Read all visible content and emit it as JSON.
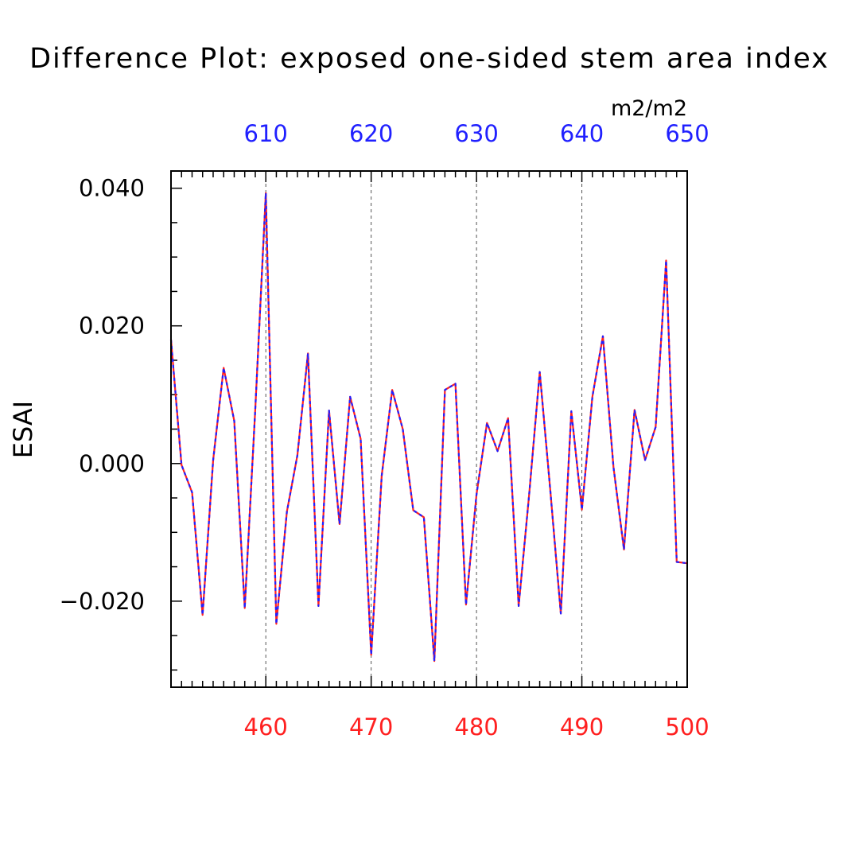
{
  "chart_data": {
    "type": "line",
    "title": "Difference Plot: exposed one-sided stem area index",
    "units": "m2/m2",
    "ylabel": "ESAI",
    "xlim_bottom": [
      451,
      500
    ],
    "xlim_top": [
      601,
      650
    ],
    "ylim": [
      -0.0325,
      0.0425
    ],
    "grid": "dashed vertical lines at major x ticks",
    "bottom_ticks": [
      "460",
      "470",
      "480",
      "490",
      "500"
    ],
    "top_ticks": [
      "610",
      "620",
      "630",
      "640",
      "650"
    ],
    "y_ticks": [
      "0.040",
      "0.020",
      "0.000",
      "−0.020"
    ],
    "colors": {
      "bottom_axis": "#ff2020",
      "top_axis": "#2020ff",
      "line_a": "#ff2020",
      "line_b": "#2020ff"
    },
    "x": [
      451,
      452,
      453,
      454,
      455,
      456,
      457,
      458,
      459,
      460,
      461,
      462,
      463,
      464,
      465,
      466,
      467,
      468,
      469,
      470,
      471,
      472,
      473,
      474,
      475,
      476,
      477,
      478,
      479,
      480,
      481,
      482,
      483,
      484,
      485,
      486,
      487,
      488,
      489,
      490,
      491,
      492,
      493,
      494,
      495,
      496,
      497,
      498,
      499,
      500
    ],
    "values": [
      0.018,
      -0.0002,
      -0.0042,
      -0.022,
      0.0005,
      0.0139,
      0.0062,
      -0.021,
      0.008,
      0.0393,
      -0.0233,
      -0.007,
      0.0012,
      0.016,
      -0.0207,
      0.0077,
      -0.0088,
      0.0097,
      0.0036,
      -0.0278,
      -0.0018,
      0.0107,
      0.005,
      -0.0068,
      -0.0078,
      -0.0287,
      0.0107,
      0.0116,
      -0.0205,
      -0.0045,
      0.0059,
      0.0018,
      0.0066,
      -0.0207,
      -0.0045,
      0.0133,
      -0.0038,
      -0.0218,
      0.0076,
      -0.0067,
      0.0097,
      0.0185,
      -0.0005,
      -0.0125,
      0.0078,
      0.0005,
      0.0053,
      0.0295,
      -0.0143,
      -0.0145
    ]
  }
}
